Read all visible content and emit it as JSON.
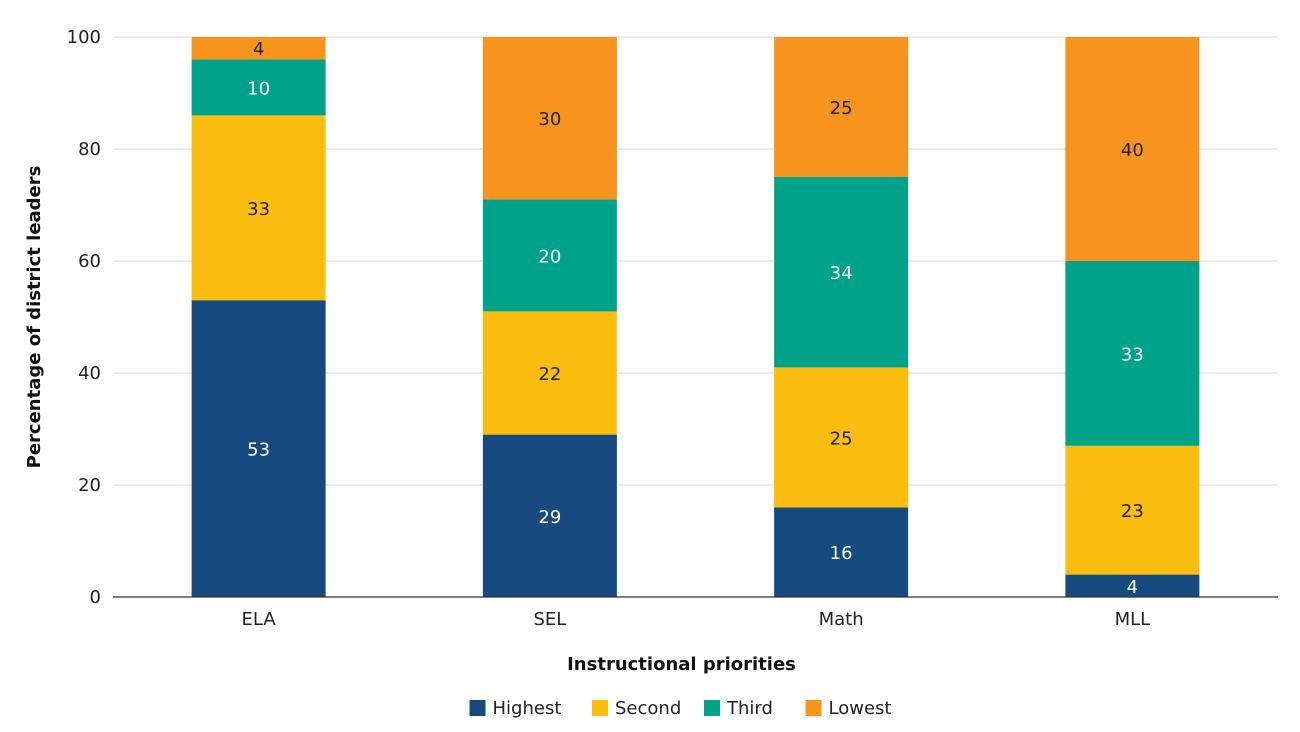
{
  "chart_data": {
    "type": "bar",
    "stacked": true,
    "categories": [
      "ELA",
      "SEL",
      "Math",
      "MLL"
    ],
    "series": [
      {
        "name": "Highest",
        "color": "#174a7e",
        "label_color": "#ffffff",
        "values": [
          53,
          29,
          16,
          4
        ]
      },
      {
        "name": "Second",
        "color": "#fbbd10",
        "label_color": "#222222",
        "values": [
          33,
          22,
          25,
          23
        ]
      },
      {
        "name": "Third",
        "color": "#00a389",
        "label_color": "#ffffff",
        "values": [
          10,
          20,
          34,
          33
        ]
      },
      {
        "name": "Lowest",
        "color": "#f7941d",
        "label_color": "#222222",
        "values": [
          4,
          30,
          25,
          40
        ]
      }
    ],
    "ylim": [
      0,
      100
    ],
    "yticks": [
      0,
      20,
      40,
      60,
      80,
      100
    ],
    "xlabel": "Instructional priorities",
    "ylabel": "Percentage of district leaders",
    "grid": true,
    "legend": "bottom-center"
  }
}
